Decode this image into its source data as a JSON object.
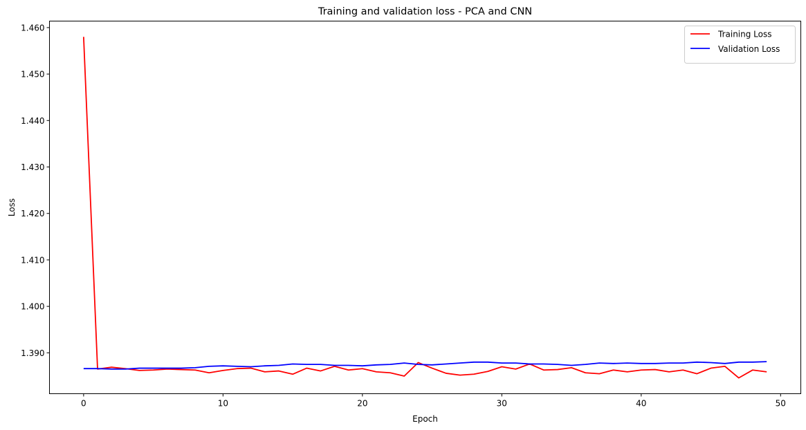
{
  "chart_data": {
    "type": "line",
    "title": "Training and validation loss - PCA and CNN",
    "xlabel": "Epoch",
    "ylabel": "Loss",
    "xlim": [
      -2.45,
      51.45
    ],
    "ylim": [
      1.3812,
      1.4614
    ],
    "xticks": [
      0,
      10,
      20,
      30,
      40,
      50
    ],
    "yticks": [
      1.39,
      1.4,
      1.41,
      1.42,
      1.43,
      1.44,
      1.45,
      1.46
    ],
    "ytick_labels": [
      "1.390",
      "1.400",
      "1.410",
      "1.420",
      "1.430",
      "1.440",
      "1.450",
      "1.460"
    ],
    "grid": false,
    "legend_position": "top-right",
    "series": [
      {
        "name": "Training Loss",
        "color": "#ff0000",
        "x": [
          0,
          1,
          2,
          3,
          4,
          5,
          6,
          7,
          8,
          9,
          10,
          11,
          12,
          13,
          14,
          15,
          16,
          17,
          18,
          19,
          20,
          21,
          22,
          23,
          24,
          25,
          26,
          27,
          28,
          29,
          30,
          31,
          32,
          33,
          34,
          35,
          36,
          37,
          38,
          39,
          40,
          41,
          42,
          43,
          44,
          45,
          46,
          47,
          48,
          49
        ],
        "values": [
          1.458,
          1.3865,
          1.3869,
          1.3866,
          1.3862,
          1.3863,
          1.3865,
          1.3864,
          1.3863,
          1.3857,
          1.3862,
          1.3866,
          1.3867,
          1.3859,
          1.3861,
          1.3854,
          1.3867,
          1.3861,
          1.3871,
          1.3863,
          1.3866,
          1.3859,
          1.3857,
          1.385,
          1.3879,
          1.3867,
          1.3856,
          1.3852,
          1.3854,
          1.386,
          1.387,
          1.3865,
          1.3876,
          1.3863,
          1.3864,
          1.3868,
          1.3857,
          1.3855,
          1.3863,
          1.3859,
          1.3863,
          1.3864,
          1.3859,
          1.3863,
          1.3855,
          1.3867,
          1.3871,
          1.3846,
          1.3863,
          1.3859
        ]
      },
      {
        "name": "Validation Loss",
        "color": "#0000ff",
        "x": [
          0,
          1,
          2,
          3,
          4,
          5,
          6,
          7,
          8,
          9,
          10,
          11,
          12,
          13,
          14,
          15,
          16,
          17,
          18,
          19,
          20,
          21,
          22,
          23,
          24,
          25,
          26,
          27,
          28,
          29,
          30,
          31,
          32,
          33,
          34,
          35,
          36,
          37,
          38,
          39,
          40,
          41,
          42,
          43,
          44,
          45,
          46,
          47,
          48,
          49
        ],
        "values": [
          1.3866,
          1.3866,
          1.3865,
          1.3865,
          1.3867,
          1.3867,
          1.3867,
          1.3867,
          1.3868,
          1.3871,
          1.3872,
          1.3871,
          1.387,
          1.3872,
          1.3873,
          1.3876,
          1.3875,
          1.3875,
          1.3873,
          1.3873,
          1.3872,
          1.3874,
          1.3875,
          1.3878,
          1.3875,
          1.3874,
          1.3876,
          1.3878,
          1.388,
          1.388,
          1.3878,
          1.3878,
          1.3876,
          1.3876,
          1.3875,
          1.3873,
          1.3875,
          1.3878,
          1.3877,
          1.3878,
          1.3877,
          1.3877,
          1.3878,
          1.3878,
          1.388,
          1.3879,
          1.3877,
          1.388,
          1.388,
          1.3881
        ]
      }
    ]
  }
}
